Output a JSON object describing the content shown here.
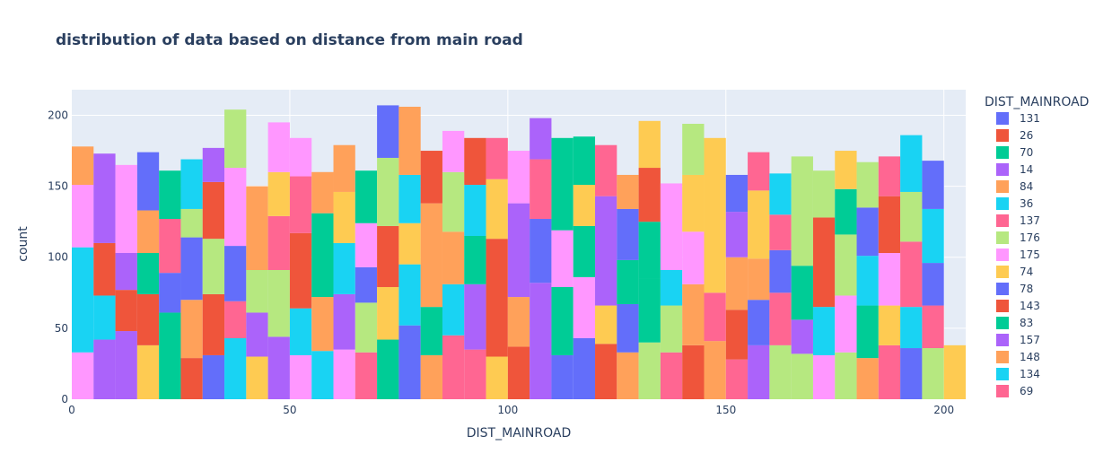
{
  "colors": {
    "plot_bg": "#e5ecf6",
    "grid": "#ffffff",
    "text": "#2a3f5f"
  },
  "chart_data": {
    "type": "bar",
    "barmode": "stack",
    "title": "distribution of data based on distance from main road",
    "xlabel": "DIST_MAINROAD",
    "ylabel": "count",
    "xlim": [
      0,
      205
    ],
    "ylim": [
      0,
      218
    ],
    "x_ticks": [
      "0",
      "50",
      "100",
      "150",
      "200"
    ],
    "y_ticks": [
      "0",
      "50",
      "100",
      "150",
      "200"
    ],
    "grid": true,
    "bin_width": 5,
    "legend": {
      "title": "DIST_MAINROAD",
      "placement": "right",
      "entries": [
        {
          "label": "131",
          "color": "#636efa"
        },
        {
          "label": "26",
          "color": "#ef553b"
        },
        {
          "label": "70",
          "color": "#00cc96"
        },
        {
          "label": "14",
          "color": "#ab63fa"
        },
        {
          "label": "84",
          "color": "#ffa15a"
        },
        {
          "label": "36",
          "color": "#19d3f3"
        },
        {
          "label": "137",
          "color": "#ff6692"
        },
        {
          "label": "176",
          "color": "#b6e880"
        },
        {
          "label": "175",
          "color": "#ff97ff"
        },
        {
          "label": "74",
          "color": "#fecb52"
        },
        {
          "label": "78",
          "color": "#636efa"
        },
        {
          "label": "143",
          "color": "#ef553b"
        },
        {
          "label": "83",
          "color": "#00cc96"
        },
        {
          "label": "157",
          "color": "#ab63fa"
        },
        {
          "label": "148",
          "color": "#ffa15a"
        },
        {
          "label": "134",
          "color": "#19d3f3"
        },
        {
          "label": "69",
          "color": "#ff6692"
        }
      ]
    },
    "bins": [
      {
        "x0": 0,
        "segments": [
          [
            33,
            "#ff97ff"
          ],
          [
            74,
            "#19d3f3"
          ],
          [
            44,
            "#ff97ff"
          ],
          [
            27,
            "#ffa15a"
          ]
        ]
      },
      {
        "x0": 5,
        "segments": [
          [
            42,
            "#ab63fa"
          ],
          [
            31,
            "#19d3f3"
          ],
          [
            37,
            "#ef553b"
          ],
          [
            63,
            "#ab63fa"
          ]
        ]
      },
      {
        "x0": 10,
        "segments": [
          [
            48,
            "#ab63fa"
          ],
          [
            29,
            "#ef553b"
          ],
          [
            26,
            "#ab63fa"
          ],
          [
            62,
            "#ff97ff"
          ]
        ]
      },
      {
        "x0": 15,
        "segments": [
          [
            38,
            "#fecb52"
          ],
          [
            36,
            "#ef553b"
          ],
          [
            29,
            "#00cc96"
          ],
          [
            30,
            "#ffa15a"
          ],
          [
            41,
            "#636efa"
          ]
        ]
      },
      {
        "x0": 20,
        "segments": [
          [
            61,
            "#00cc96"
          ],
          [
            28,
            "#636efa"
          ],
          [
            38,
            "#ff6692"
          ],
          [
            34,
            "#00cc96"
          ]
        ]
      },
      {
        "x0": 25,
        "segments": [
          [
            29,
            "#ef553b"
          ],
          [
            41,
            "#ffa15a"
          ],
          [
            44,
            "#636efa"
          ],
          [
            20,
            "#b6e880"
          ],
          [
            35,
            "#19d3f3"
          ]
        ]
      },
      {
        "x0": 30,
        "segments": [
          [
            31,
            "#636efa"
          ],
          [
            43,
            "#ef553b"
          ],
          [
            39,
            "#b6e880"
          ],
          [
            40,
            "#ef553b"
          ],
          [
            24,
            "#ab63fa"
          ]
        ]
      },
      {
        "x0": 35,
        "segments": [
          [
            43,
            "#19d3f3"
          ],
          [
            26,
            "#ff6692"
          ],
          [
            39,
            "#636efa"
          ],
          [
            55,
            "#ff97ff"
          ],
          [
            41,
            "#b6e880"
          ]
        ]
      },
      {
        "x0": 40,
        "segments": [
          [
            30,
            "#fecb52"
          ],
          [
            31,
            "#ab63fa"
          ],
          [
            30,
            "#b6e880"
          ],
          [
            59,
            "#ffa15a"
          ]
        ]
      },
      {
        "x0": 45,
        "segments": [
          [
            44,
            "#ab63fa"
          ],
          [
            47,
            "#b6e880"
          ],
          [
            38,
            "#ff6692"
          ],
          [
            31,
            "#fecb52"
          ],
          [
            35,
            "#ff97ff"
          ]
        ]
      },
      {
        "x0": 50,
        "segments": [
          [
            31,
            "#ff97ff"
          ],
          [
            33,
            "#19d3f3"
          ],
          [
            53,
            "#ef553b"
          ],
          [
            40,
            "#ff6692"
          ],
          [
            27,
            "#ff97ff"
          ]
        ]
      },
      {
        "x0": 55,
        "segments": [
          [
            34,
            "#19d3f3"
          ],
          [
            38,
            "#ffa15a"
          ],
          [
            59,
            "#00cc96"
          ],
          [
            29,
            "#ffa15a"
          ]
        ]
      },
      {
        "x0": 60,
        "segments": [
          [
            35,
            "#ff97ff"
          ],
          [
            39,
            "#ab63fa"
          ],
          [
            36,
            "#19d3f3"
          ],
          [
            36,
            "#fecb52"
          ],
          [
            33,
            "#ffa15a"
          ]
        ]
      },
      {
        "x0": 65,
        "segments": [
          [
            33,
            "#ff6692"
          ],
          [
            35,
            "#b6e880"
          ],
          [
            25,
            "#636efa"
          ],
          [
            31,
            "#ff97ff"
          ],
          [
            37,
            "#00cc96"
          ]
        ]
      },
      {
        "x0": 70,
        "segments": [
          [
            42,
            "#00cc96"
          ],
          [
            37,
            "#fecb52"
          ],
          [
            43,
            "#ef553b"
          ],
          [
            48,
            "#b6e880"
          ],
          [
            37,
            "#636efa"
          ]
        ]
      },
      {
        "x0": 75,
        "segments": [
          [
            52,
            "#636efa"
          ],
          [
            43,
            "#19d3f3"
          ],
          [
            29,
            "#fecb52"
          ],
          [
            34,
            "#19d3f3"
          ],
          [
            48,
            "#ffa15a"
          ]
        ]
      },
      {
        "x0": 80,
        "segments": [
          [
            31,
            "#ffa15a"
          ],
          [
            34,
            "#00cc96"
          ],
          [
            73,
            "#ffa15a"
          ],
          [
            37,
            "#ef553b"
          ]
        ]
      },
      {
        "x0": 85,
        "segments": [
          [
            45,
            "#ff6692"
          ],
          [
            36,
            "#19d3f3"
          ],
          [
            37,
            "#ffa15a"
          ],
          [
            42,
            "#b6e880"
          ],
          [
            29,
            "#ff97ff"
          ]
        ]
      },
      {
        "x0": 90,
        "segments": [
          [
            35,
            "#ff6692"
          ],
          [
            46,
            "#ab63fa"
          ],
          [
            34,
            "#00cc96"
          ],
          [
            36,
            "#19d3f3"
          ],
          [
            33,
            "#ef553b"
          ]
        ]
      },
      {
        "x0": 95,
        "segments": [
          [
            30,
            "#fecb52"
          ],
          [
            83,
            "#ef553b"
          ],
          [
            42,
            "#fecb52"
          ],
          [
            29,
            "#ff6692"
          ]
        ]
      },
      {
        "x0": 100,
        "segments": [
          [
            37,
            "#ef553b"
          ],
          [
            35,
            "#ffa15a"
          ],
          [
            66,
            "#ab63fa"
          ],
          [
            37,
            "#ff97ff"
          ]
        ]
      },
      {
        "x0": 105,
        "segments": [
          [
            82,
            "#ab63fa"
          ],
          [
            45,
            "#636efa"
          ],
          [
            42,
            "#ff6692"
          ],
          [
            29,
            "#ab63fa"
          ]
        ]
      },
      {
        "x0": 110,
        "segments": [
          [
            31,
            "#636efa"
          ],
          [
            48,
            "#00cc96"
          ],
          [
            40,
            "#ff97ff"
          ],
          [
            65,
            "#00cc96"
          ]
        ]
      },
      {
        "x0": 115,
        "segments": [
          [
            43,
            "#636efa"
          ],
          [
            43,
            "#ff97ff"
          ],
          [
            36,
            "#00cc96"
          ],
          [
            29,
            "#fecb52"
          ],
          [
            34,
            "#00cc96"
          ]
        ]
      },
      {
        "x0": 120,
        "segments": [
          [
            39,
            "#ef553b"
          ],
          [
            27,
            "#fecb52"
          ],
          [
            77,
            "#ab63fa"
          ],
          [
            36,
            "#ff6692"
          ]
        ]
      },
      {
        "x0": 125,
        "segments": [
          [
            33,
            "#ffa15a"
          ],
          [
            34,
            "#636efa"
          ],
          [
            31,
            "#00cc96"
          ],
          [
            36,
            "#636efa"
          ],
          [
            24,
            "#ffa15a"
          ]
        ]
      },
      {
        "x0": 130,
        "segments": [
          [
            40,
            "#b6e880"
          ],
          [
            45,
            "#00cc96"
          ],
          [
            40,
            "#00cc96"
          ],
          [
            38,
            "#ef553b"
          ],
          [
            33,
            "#fecb52"
          ]
        ]
      },
      {
        "x0": 135,
        "segments": [
          [
            33,
            "#ff6692"
          ],
          [
            33,
            "#b6e880"
          ],
          [
            25,
            "#19d3f3"
          ],
          [
            61,
            "#ff97ff"
          ]
        ]
      },
      {
        "x0": 140,
        "segments": [
          [
            38,
            "#ef553b"
          ],
          [
            43,
            "#ffa15a"
          ],
          [
            37,
            "#ff97ff"
          ],
          [
            40,
            "#fecb52"
          ],
          [
            36,
            "#b6e880"
          ]
        ]
      },
      {
        "x0": 145,
        "segments": [
          [
            41,
            "#ffa15a"
          ],
          [
            34,
            "#ff6692"
          ],
          [
            109,
            "#fecb52"
          ]
        ]
      },
      {
        "x0": 150,
        "segments": [
          [
            28,
            "#ff6692"
          ],
          [
            35,
            "#ef553b"
          ],
          [
            37,
            "#ffa15a"
          ],
          [
            32,
            "#ab63fa"
          ],
          [
            26,
            "#636efa"
          ]
        ]
      },
      {
        "x0": 155,
        "segments": [
          [
            38,
            "#ab63fa"
          ],
          [
            32,
            "#636efa"
          ],
          [
            29,
            "#ffa15a"
          ],
          [
            48,
            "#fecb52"
          ],
          [
            27,
            "#ff6692"
          ]
        ]
      },
      {
        "x0": 160,
        "segments": [
          [
            38,
            "#b6e880"
          ],
          [
            37,
            "#ff6692"
          ],
          [
            30,
            "#636efa"
          ],
          [
            25,
            "#ff6692"
          ],
          [
            29,
            "#19d3f3"
          ]
        ]
      },
      {
        "x0": 165,
        "segments": [
          [
            32,
            "#b6e880"
          ],
          [
            24,
            "#ab63fa"
          ],
          [
            38,
            "#00cc96"
          ],
          [
            77,
            "#b6e880"
          ]
        ]
      },
      {
        "x0": 170,
        "segments": [
          [
            31,
            "#ff97ff"
          ],
          [
            34,
            "#19d3f3"
          ],
          [
            63,
            "#ef553b"
          ],
          [
            33,
            "#b6e880"
          ]
        ]
      },
      {
        "x0": 175,
        "segments": [
          [
            33,
            "#b6e880"
          ],
          [
            40,
            "#ff97ff"
          ],
          [
            43,
            "#b6e880"
          ],
          [
            32,
            "#00cc96"
          ],
          [
            27,
            "#fecb52"
          ]
        ]
      },
      {
        "x0": 180,
        "segments": [
          [
            29,
            "#ffa15a"
          ],
          [
            37,
            "#00cc96"
          ],
          [
            35,
            "#19d3f3"
          ],
          [
            34,
            "#636efa"
          ],
          [
            32,
            "#b6e880"
          ]
        ]
      },
      {
        "x0": 185,
        "segments": [
          [
            38,
            "#ff6692"
          ],
          [
            28,
            "#fecb52"
          ],
          [
            37,
            "#ff97ff"
          ],
          [
            40,
            "#ef553b"
          ],
          [
            28,
            "#ff6692"
          ]
        ]
      },
      {
        "x0": 190,
        "segments": [
          [
            36,
            "#636efa"
          ],
          [
            29,
            "#19d3f3"
          ],
          [
            46,
            "#ff6692"
          ],
          [
            35,
            "#b6e880"
          ],
          [
            40,
            "#19d3f3"
          ]
        ]
      },
      {
        "x0": 195,
        "segments": [
          [
            36,
            "#b6e880"
          ],
          [
            30,
            "#ff6692"
          ],
          [
            30,
            "#636efa"
          ],
          [
            38,
            "#19d3f3"
          ],
          [
            34,
            "#636efa"
          ]
        ]
      },
      {
        "x0": 200,
        "segments": [
          [
            38,
            "#fecb52"
          ]
        ]
      }
    ]
  }
}
